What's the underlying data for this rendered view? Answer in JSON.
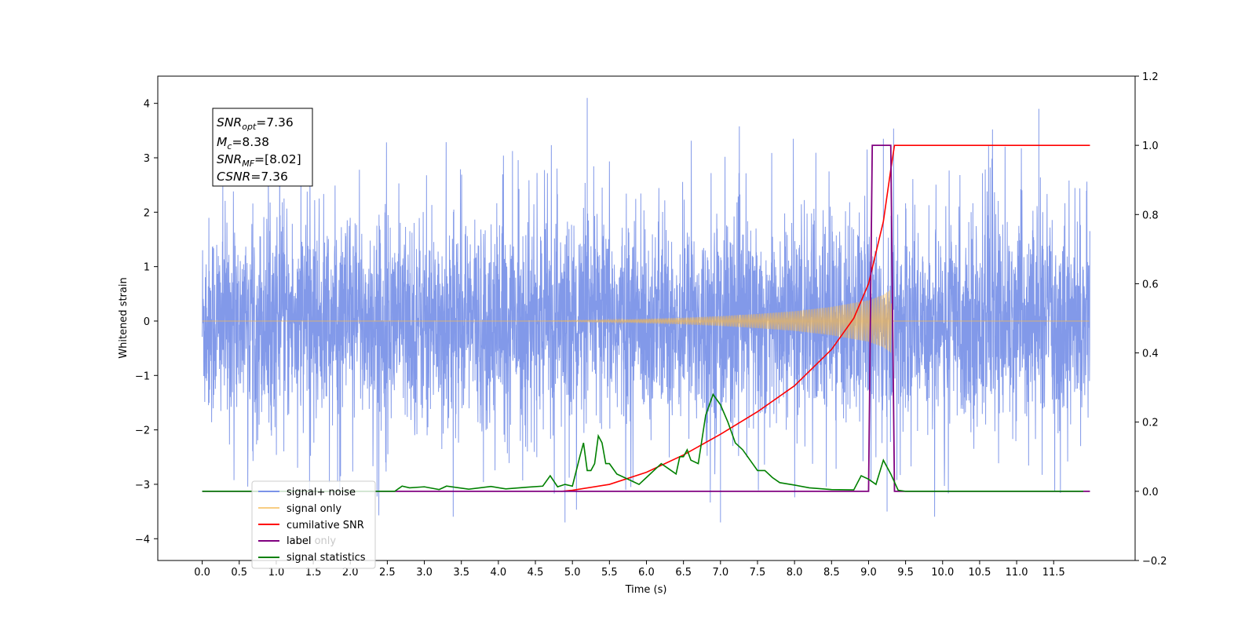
{
  "chart_data": {
    "type": "line",
    "xlabel": "Time (s)",
    "ylabel": "Whitened strain",
    "xlim": [
      -0.6,
      12.6
    ],
    "ylim": [
      -4.4,
      4.5
    ],
    "ylim_right": [
      -0.2,
      1.2
    ],
    "x_ticks": [
      "0.0",
      "0.5",
      "1.0",
      "1.5",
      "2.0",
      "2.5",
      "3.0",
      "3.5",
      "4.0",
      "4.5",
      "5.0",
      "5.5",
      "6.0",
      "6.5",
      "7.0",
      "7.5",
      "8.0",
      "8.5",
      "9.0",
      "9.5",
      "10.0",
      "10.5",
      "11.0",
      "11.5"
    ],
    "y_ticks_left": [
      "4",
      "3",
      "2",
      "1",
      "0",
      "−1",
      "−2",
      "−3",
      "−4"
    ],
    "y_ticks_right": [
      "1.2",
      "1.0",
      "0.8",
      "0.6",
      "0.4",
      "0.2",
      "0.0",
      "−0.2"
    ],
    "annotation": {
      "snr_opt": {
        "name": "SNR",
        "sub": "opt",
        "value": "=7.36"
      },
      "mc": {
        "name": "M",
        "sub": "c",
        "value": "=8.38"
      },
      "snr_mf": {
        "name": "SNR",
        "sub": "MF",
        "value": "=[8.02]"
      },
      "csnr": {
        "name": "CSNR",
        "value": "=7.36"
      }
    },
    "legend_placement": "lower-left",
    "legend": {
      "signal_noise": "signal+ noise",
      "signal_only": "signal only",
      "cum_snr": "cumilative SNR",
      "label": "label",
      "label_only_hidden": "label only",
      "signal_statistics": "signal statistics"
    },
    "colors": {
      "signal_noise": "#7b93e8",
      "signal_only": "#f5b84f",
      "cum_snr": "#ff0000",
      "label": "#800080",
      "signal_statistics": "#008000"
    },
    "series": [
      {
        "name": "signal+ noise",
        "axis": "left",
        "description_values": {
          "x_range": [
            0.0,
            11.99
          ],
          "typical_amplitude": 1.7,
          "max": 4.1,
          "min": -3.8
        }
      },
      {
        "name": "signal only",
        "axis": "left",
        "envelope": {
          "x": [
            5.5,
            6.0,
            6.5,
            7.0,
            7.5,
            8.0,
            8.5,
            9.0,
            9.2,
            9.3,
            9.32
          ],
          "amp": [
            0.02,
            0.04,
            0.06,
            0.09,
            0.13,
            0.18,
            0.26,
            0.38,
            0.48,
            0.58,
            0.0
          ]
        }
      },
      {
        "name": "cumilative SNR",
        "axis": "right",
        "x": [
          4.85,
          5.0,
          5.5,
          6.0,
          6.5,
          7.0,
          7.5,
          8.0,
          8.5,
          8.8,
          9.0,
          9.2,
          9.3,
          9.35,
          11.99
        ],
        "y": [
          0.0,
          0.003,
          0.02,
          0.055,
          0.105,
          0.165,
          0.23,
          0.305,
          0.41,
          0.5,
          0.6,
          0.78,
          0.93,
          1.0,
          1.0
        ]
      },
      {
        "name": "label",
        "axis": "right",
        "x": [
          0.0,
          9.0,
          9.05,
          9.3,
          9.35,
          11.99
        ],
        "y": [
          0.0,
          0.0,
          1.0,
          1.0,
          0.0,
          0.0
        ]
      },
      {
        "name": "signal statistics",
        "axis": "right",
        "x": [
          0.0,
          2.6,
          2.7,
          2.8,
          3.0,
          3.2,
          3.3,
          3.6,
          3.9,
          4.1,
          4.4,
          4.6,
          4.7,
          4.8,
          4.9,
          5.0,
          5.1,
          5.15,
          5.2,
          5.25,
          5.3,
          5.35,
          5.4,
          5.45,
          5.5,
          5.6,
          5.8,
          5.9,
          6.0,
          6.1,
          6.2,
          6.3,
          6.4,
          6.45,
          6.5,
          6.55,
          6.6,
          6.7,
          6.8,
          6.9,
          7.0,
          7.1,
          7.2,
          7.3,
          7.4,
          7.5,
          7.6,
          7.7,
          7.8,
          8.0,
          8.2,
          8.5,
          8.8,
          8.9,
          9.0,
          9.1,
          9.2,
          9.3,
          9.4,
          9.5,
          10.0,
          11.9
        ],
        "y": [
          0.0,
          0.0,
          0.015,
          0.01,
          0.013,
          0.005,
          0.015,
          0.006,
          0.014,
          0.007,
          0.012,
          0.015,
          0.045,
          0.013,
          0.02,
          0.015,
          0.1,
          0.14,
          0.06,
          0.06,
          0.08,
          0.16,
          0.14,
          0.08,
          0.08,
          0.05,
          0.03,
          0.02,
          0.04,
          0.06,
          0.08,
          0.065,
          0.05,
          0.1,
          0.1,
          0.12,
          0.09,
          0.08,
          0.22,
          0.28,
          0.25,
          0.2,
          0.14,
          0.12,
          0.09,
          0.06,
          0.06,
          0.04,
          0.025,
          0.018,
          0.01,
          0.005,
          0.004,
          0.045,
          0.035,
          0.02,
          0.09,
          0.05,
          0.003,
          0.0,
          0.0,
          0.0
        ]
      }
    ]
  }
}
